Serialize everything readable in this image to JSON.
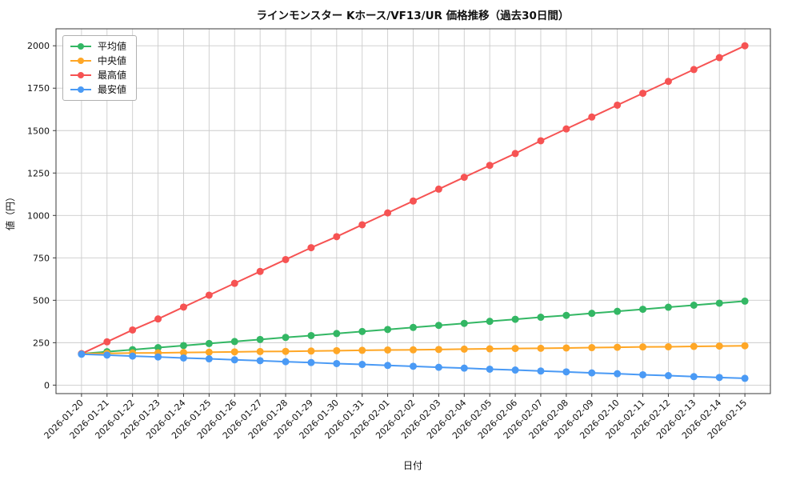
{
  "chart_data": {
    "type": "line",
    "title": "ラインモンスター Kホース/VF13/UR 価格推移（過去30日間）",
    "xlabel": "日付",
    "ylabel": "値（円）",
    "ylim": [
      -50,
      2100
    ],
    "yticks": [
      0,
      250,
      500,
      750,
      1000,
      1250,
      1500,
      1750,
      2000
    ],
    "grid": true,
    "legend_position": "upper-left",
    "categories": [
      "2026-01-20",
      "2026-01-21",
      "2026-01-22",
      "2026-01-23",
      "2026-01-24",
      "2026-01-25",
      "2026-01-26",
      "2026-01-27",
      "2026-01-28",
      "2026-01-29",
      "2026-01-30",
      "2026-01-31",
      "2026-02-01",
      "2026-02-02",
      "2026-02-03",
      "2026-02-04",
      "2026-02-05",
      "2026-02-06",
      "2026-02-07",
      "2026-02-08",
      "2026-02-09",
      "2026-02-10",
      "2026-02-11",
      "2026-02-12",
      "2026-02-13",
      "2026-02-14",
      "2026-02-15"
    ],
    "series": [
      {
        "name": "平均値",
        "color": "#33b764",
        "values": [
          185,
          197,
          209,
          221,
          233,
          245,
          257,
          269,
          281,
          292,
          304,
          316,
          328,
          340,
          352,
          364,
          376,
          388,
          400,
          411,
          423,
          435,
          447,
          459,
          471,
          483,
          495
        ]
      },
      {
        "name": "中央値",
        "color": "#ffa726",
        "values": [
          185,
          187,
          189,
          190,
          192,
          194,
          196,
          198,
          199,
          201,
          203,
          205,
          207,
          208,
          210,
          212,
          214,
          216,
          217,
          219,
          221,
          223,
          225,
          226,
          228,
          230,
          232
        ]
      },
      {
        "name": "最高値",
        "color": "#f65353",
        "values": [
          185,
          255,
          325,
          390,
          460,
          530,
          600,
          670,
          740,
          810,
          875,
          945,
          1015,
          1085,
          1155,
          1225,
          1295,
          1365,
          1440,
          1510,
          1580,
          1650,
          1720,
          1790,
          1860,
          1930,
          2000
        ]
      },
      {
        "name": "最安値",
        "color": "#4a9af5",
        "values": [
          182,
          177,
          171,
          166,
          160,
          155,
          149,
          144,
          138,
          133,
          127,
          122,
          116,
          111,
          105,
          100,
          94,
          89,
          83,
          78,
          72,
          67,
          61,
          56,
          50,
          45,
          40
        ]
      }
    ]
  }
}
